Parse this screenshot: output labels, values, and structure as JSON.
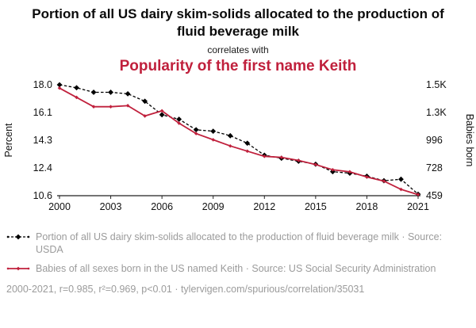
{
  "header": {
    "title": "Portion of all US dairy skim-solids allocated to the production of fluid beverage milk",
    "connector": "correlates with",
    "title2": "Popularity of the first name Keith"
  },
  "colors": {
    "accent_red": "#c0203c",
    "line_black": "#000000",
    "muted_gray": "#9b9b9b",
    "axis": "#222222"
  },
  "chart_data": {
    "type": "line",
    "x": [
      2000,
      2001,
      2002,
      2003,
      2004,
      2005,
      2006,
      2007,
      2008,
      2009,
      2010,
      2011,
      2012,
      2013,
      2014,
      2015,
      2016,
      2017,
      2018,
      2019,
      2020,
      2021
    ],
    "x_ticks": [
      "2000",
      "2003",
      "2006",
      "2009",
      "2012",
      "2015",
      "2018",
      "2021"
    ],
    "left_axis": {
      "label": "Percent",
      "ticks": [
        "18.0",
        "16.1",
        "14.3",
        "12.4",
        "10.6"
      ],
      "min": 10.6,
      "max": 18.0
    },
    "right_axis": {
      "label": "Babies born",
      "ticks": [
        "1.5K",
        "1.3K",
        "996",
        "728",
        "459"
      ],
      "min": 459,
      "max": 1532
    },
    "series": [
      {
        "name": "Portion of all US dairy skim-solids allocated to the production of fluid beverage milk",
        "axis": "left",
        "color": "#000000",
        "dash": true,
        "values": [
          18.0,
          17.8,
          17.5,
          17.5,
          17.4,
          16.9,
          16.0,
          15.7,
          15.0,
          14.9,
          14.6,
          14.1,
          13.3,
          13.1,
          12.9,
          12.7,
          12.2,
          12.1,
          11.9,
          11.6,
          11.7,
          10.7
        ]
      },
      {
        "name": "Babies of all sexes born in the US named Keith",
        "axis": "right",
        "color": "#c0203c",
        "dash": false,
        "values": [
          1500,
          1410,
          1320,
          1320,
          1330,
          1230,
          1280,
          1160,
          1060,
          1000,
          940,
          890,
          840,
          830,
          800,
          760,
          710,
          690,
          640,
          600,
          520,
          470
        ]
      }
    ],
    "grid": false,
    "legend_position": "bottom"
  },
  "legend": [
    {
      "label": "Portion of all US dairy skim-solids allocated to the production of fluid beverage milk · Source: USDA"
    },
    {
      "label": "Babies of all sexes born in the US named Keith · Source: US Social Security Administration"
    }
  ],
  "footer": "2000-2021, r=0.985, r²=0.969, p<0.01 · tylervigen.com/spurious/correlation/35031"
}
